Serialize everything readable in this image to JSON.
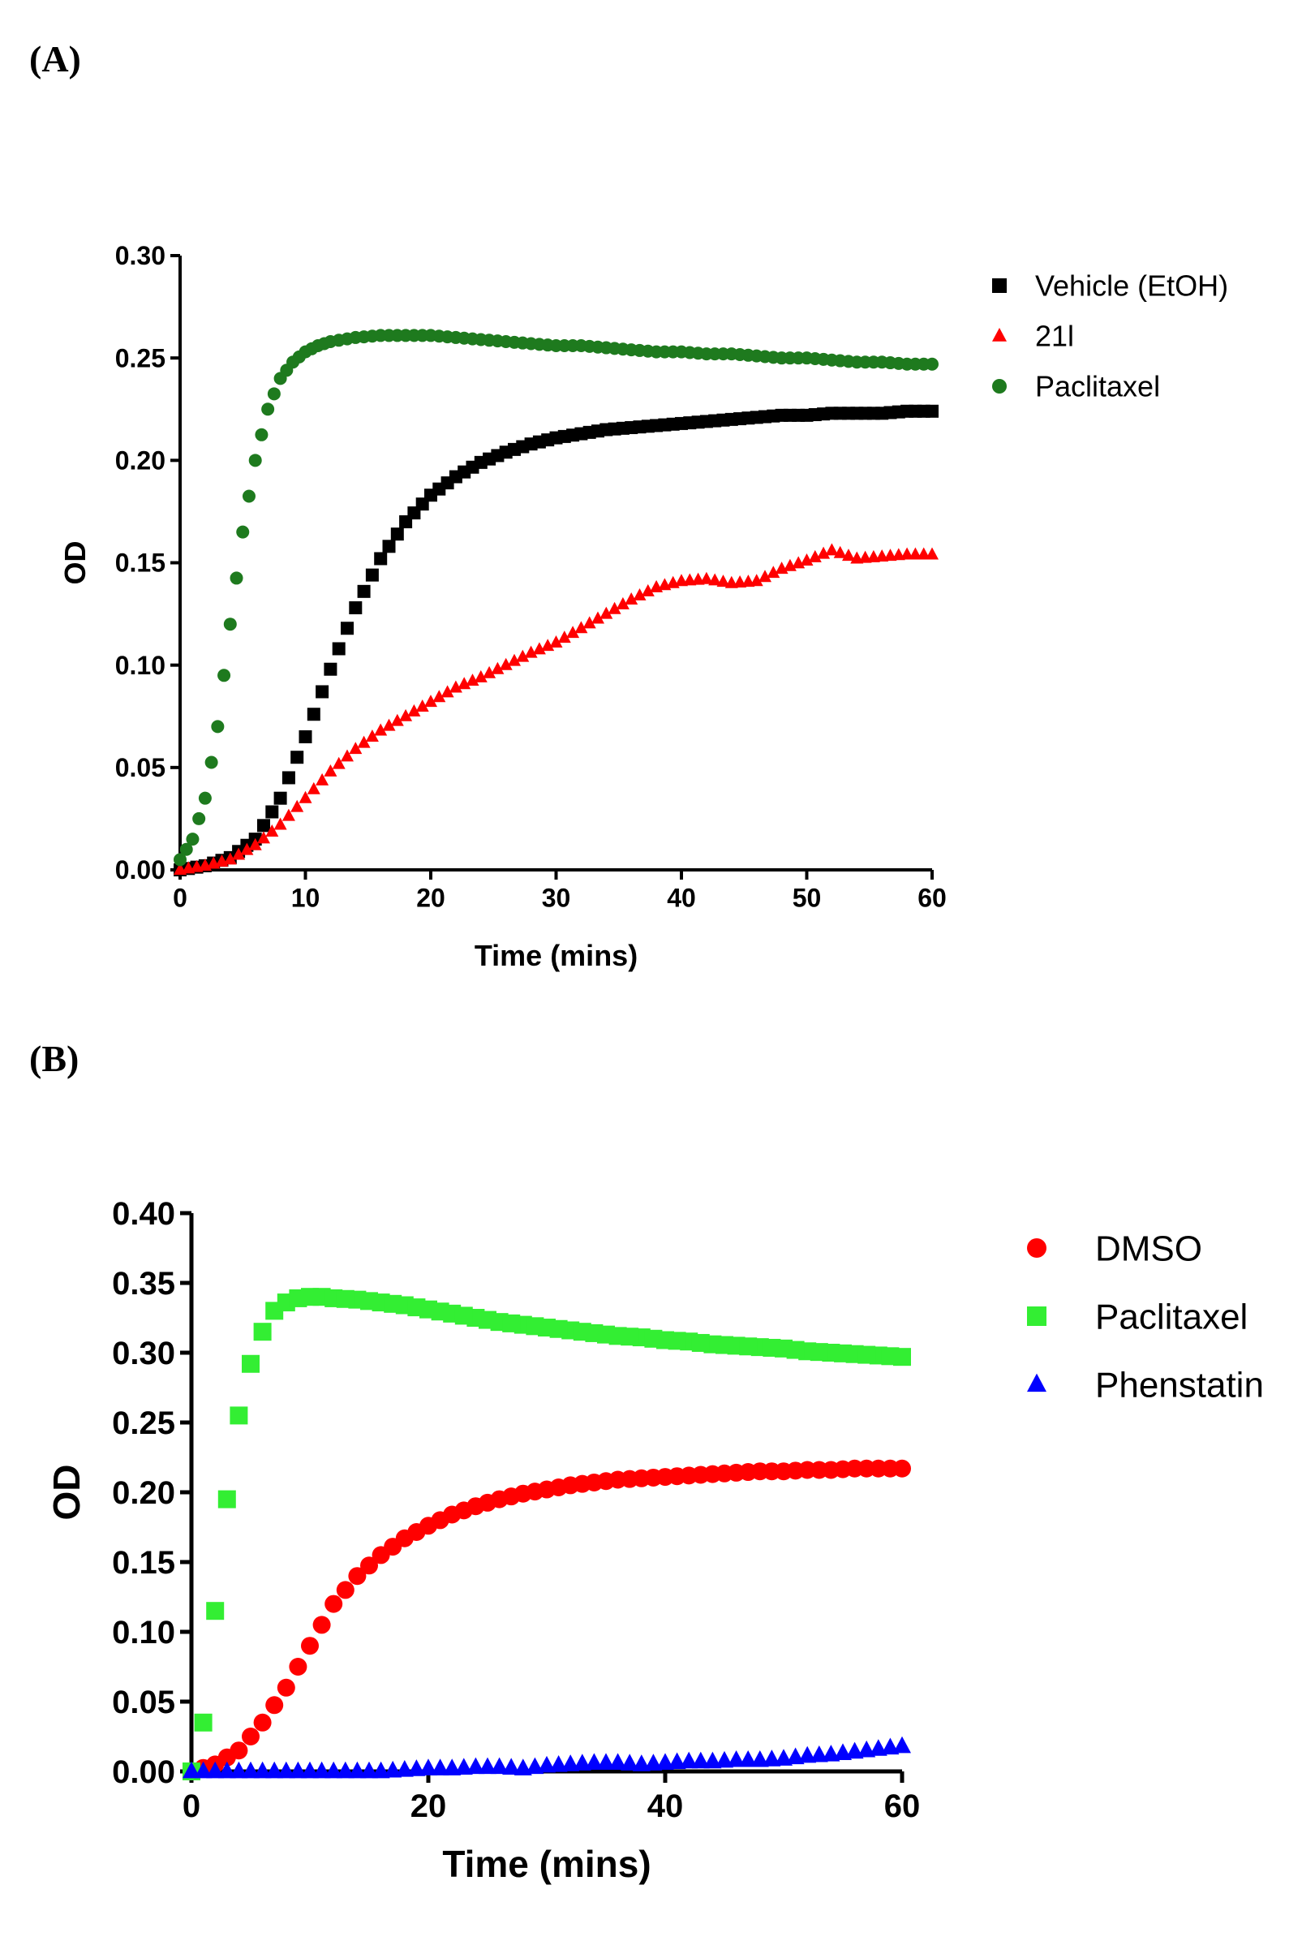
{
  "chart_data": [
    {
      "panel_label": "(A)",
      "type": "scatter",
      "title": "",
      "xlabel": "Time (mins)",
      "ylabel": "OD",
      "xlim": [
        0,
        60
      ],
      "ylim": [
        0,
        0.3
      ],
      "x_ticks": [
        "0",
        "10",
        "20",
        "30",
        "40",
        "50",
        "60"
      ],
      "y_ticks": [
        "0.00",
        "0.05",
        "0.10",
        "0.15",
        "0.20",
        "0.25",
        "0.30"
      ],
      "grid": false,
      "legend_position": "top-right",
      "series": [
        {
          "name": "Vehicle (EtOH)",
          "color": "#000000",
          "marker": "square",
          "x": [
            0,
            2,
            4,
            6,
            8,
            10,
            12,
            14,
            16,
            18,
            20,
            22,
            24,
            26,
            28,
            30,
            32,
            34,
            36,
            38,
            40,
            42,
            44,
            46,
            48,
            50,
            52,
            54,
            56,
            58,
            60
          ],
          "values": [
            0,
            0.002,
            0.006,
            0.015,
            0.035,
            0.065,
            0.098,
            0.128,
            0.152,
            0.17,
            0.183,
            0.192,
            0.199,
            0.204,
            0.208,
            0.211,
            0.213,
            0.215,
            0.216,
            0.217,
            0.218,
            0.219,
            0.22,
            0.221,
            0.222,
            0.222,
            0.223,
            0.223,
            0.223,
            0.224,
            0.224
          ]
        },
        {
          "name": "21l",
          "color": "#ff0000",
          "marker": "triangle",
          "x": [
            0,
            2,
            4,
            6,
            8,
            10,
            12,
            14,
            16,
            18,
            20,
            22,
            24,
            26,
            28,
            30,
            32,
            34,
            36,
            38,
            40,
            42,
            44,
            46,
            48,
            50,
            52,
            54,
            56,
            58,
            60
          ],
          "values": [
            0,
            0.002,
            0.005,
            0.012,
            0.022,
            0.035,
            0.048,
            0.059,
            0.068,
            0.075,
            0.082,
            0.089,
            0.094,
            0.1,
            0.106,
            0.111,
            0.118,
            0.125,
            0.132,
            0.138,
            0.141,
            0.142,
            0.14,
            0.141,
            0.147,
            0.151,
            0.156,
            0.152,
            0.153,
            0.154,
            0.154
          ]
        },
        {
          "name": "Paclitaxel",
          "color": "#1e7a1e",
          "marker": "circle",
          "x": [
            0,
            1,
            2,
            3,
            4,
            5,
            6,
            7,
            8,
            9,
            10,
            11,
            12,
            14,
            16,
            18,
            20,
            22,
            24,
            26,
            28,
            30,
            32,
            34,
            36,
            38,
            40,
            42,
            44,
            46,
            48,
            50,
            52,
            54,
            56,
            58,
            60
          ],
          "values": [
            0.005,
            0.015,
            0.035,
            0.07,
            0.12,
            0.165,
            0.2,
            0.225,
            0.24,
            0.248,
            0.253,
            0.256,
            0.258,
            0.26,
            0.261,
            0.261,
            0.261,
            0.26,
            0.259,
            0.258,
            0.257,
            0.256,
            0.256,
            0.255,
            0.254,
            0.253,
            0.253,
            0.252,
            0.252,
            0.251,
            0.25,
            0.25,
            0.249,
            0.248,
            0.248,
            0.247,
            0.247
          ]
        }
      ]
    },
    {
      "panel_label": "(B)",
      "type": "scatter",
      "title": "",
      "xlabel": "Time (mins)",
      "ylabel": "OD",
      "xlim": [
        0,
        60
      ],
      "ylim": [
        0,
        0.4
      ],
      "x_ticks": [
        "0",
        "20",
        "40",
        "60"
      ],
      "y_ticks": [
        "0.00",
        "0.05",
        "0.10",
        "0.15",
        "0.20",
        "0.25",
        "0.30",
        "0.35",
        "0.40"
      ],
      "grid": false,
      "legend_position": "top-right",
      "series": [
        {
          "name": "DMSO",
          "color": "#ff0000",
          "marker": "circle",
          "x": [
            0,
            2,
            4,
            6,
            8,
            10,
            12,
            14,
            16,
            18,
            20,
            22,
            24,
            26,
            28,
            30,
            32,
            34,
            36,
            38,
            40,
            42,
            44,
            46,
            48,
            50,
            52,
            54,
            56,
            58,
            60
          ],
          "values": [
            0,
            0.005,
            0.015,
            0.035,
            0.06,
            0.09,
            0.12,
            0.14,
            0.155,
            0.167,
            0.176,
            0.184,
            0.19,
            0.195,
            0.199,
            0.202,
            0.205,
            0.207,
            0.209,
            0.21,
            0.211,
            0.212,
            0.213,
            0.214,
            0.215,
            0.215,
            0.216,
            0.216,
            0.217,
            0.217,
            0.217
          ]
        },
        {
          "name": "Paclitaxel",
          "color": "#33ee33",
          "marker": "square",
          "x": [
            0,
            1,
            2,
            3,
            4,
            5,
            6,
            7,
            8,
            9,
            10,
            11,
            12,
            14,
            16,
            18,
            20,
            22,
            24,
            26,
            28,
            30,
            32,
            34,
            36,
            38,
            40,
            42,
            44,
            46,
            48,
            50,
            52,
            54,
            56,
            58,
            60
          ],
          "values": [
            0,
            0.035,
            0.115,
            0.195,
            0.255,
            0.292,
            0.315,
            0.33,
            0.336,
            0.339,
            0.34,
            0.34,
            0.339,
            0.338,
            0.336,
            0.334,
            0.331,
            0.328,
            0.325,
            0.322,
            0.32,
            0.318,
            0.316,
            0.314,
            0.312,
            0.311,
            0.309,
            0.308,
            0.306,
            0.305,
            0.304,
            0.303,
            0.301,
            0.3,
            0.299,
            0.298,
            0.297
          ]
        },
        {
          "name": "Phenstatin",
          "color": "#0000ff",
          "marker": "triangle",
          "x": [
            0,
            2,
            4,
            6,
            8,
            10,
            12,
            14,
            16,
            18,
            20,
            22,
            24,
            26,
            28,
            30,
            32,
            34,
            36,
            38,
            40,
            42,
            44,
            46,
            48,
            50,
            52,
            54,
            56,
            58,
            60
          ],
          "values": [
            0,
            0,
            0,
            0,
            0,
            0,
            0,
            0,
            0,
            0.001,
            0.002,
            0.002,
            0.003,
            0.003,
            0.002,
            0.004,
            0.005,
            0.006,
            0.006,
            0.005,
            0.006,
            0.007,
            0.007,
            0.008,
            0.008,
            0.009,
            0.011,
            0.012,
            0.014,
            0.016,
            0.018
          ]
        }
      ]
    }
  ]
}
